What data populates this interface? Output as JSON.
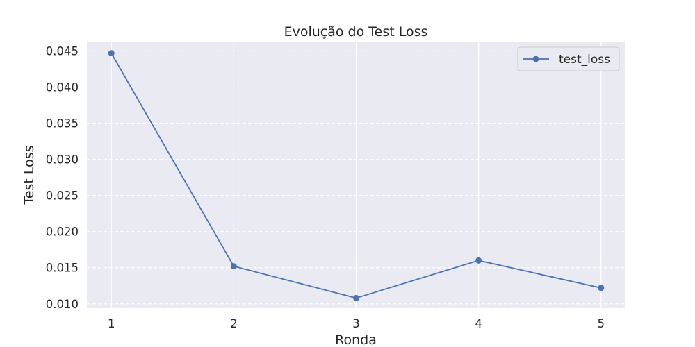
{
  "chart_data": {
    "type": "line",
    "title": "Evolução do Test Loss",
    "xlabel": "Ronda",
    "ylabel": "Test Loss",
    "x": [
      1,
      2,
      3,
      4,
      5
    ],
    "x_ticks": [
      "1",
      "2",
      "3",
      "4",
      "5"
    ],
    "y_ticks": [
      "0.010",
      "0.015",
      "0.020",
      "0.025",
      "0.030",
      "0.035",
      "0.040",
      "0.045"
    ],
    "xlim": [
      0.8,
      5.2
    ],
    "ylim": [
      0.0094,
      0.0463
    ],
    "series": [
      {
        "name": "test_loss",
        "values": [
          0.0447,
          0.0152,
          0.0108,
          0.016,
          0.0122
        ],
        "color": "#4c72b0",
        "marker": "circle"
      }
    ],
    "grid": true,
    "y_grid_style": "dashed",
    "legend_position": "top-right",
    "background_color": "#eaeaf2"
  }
}
